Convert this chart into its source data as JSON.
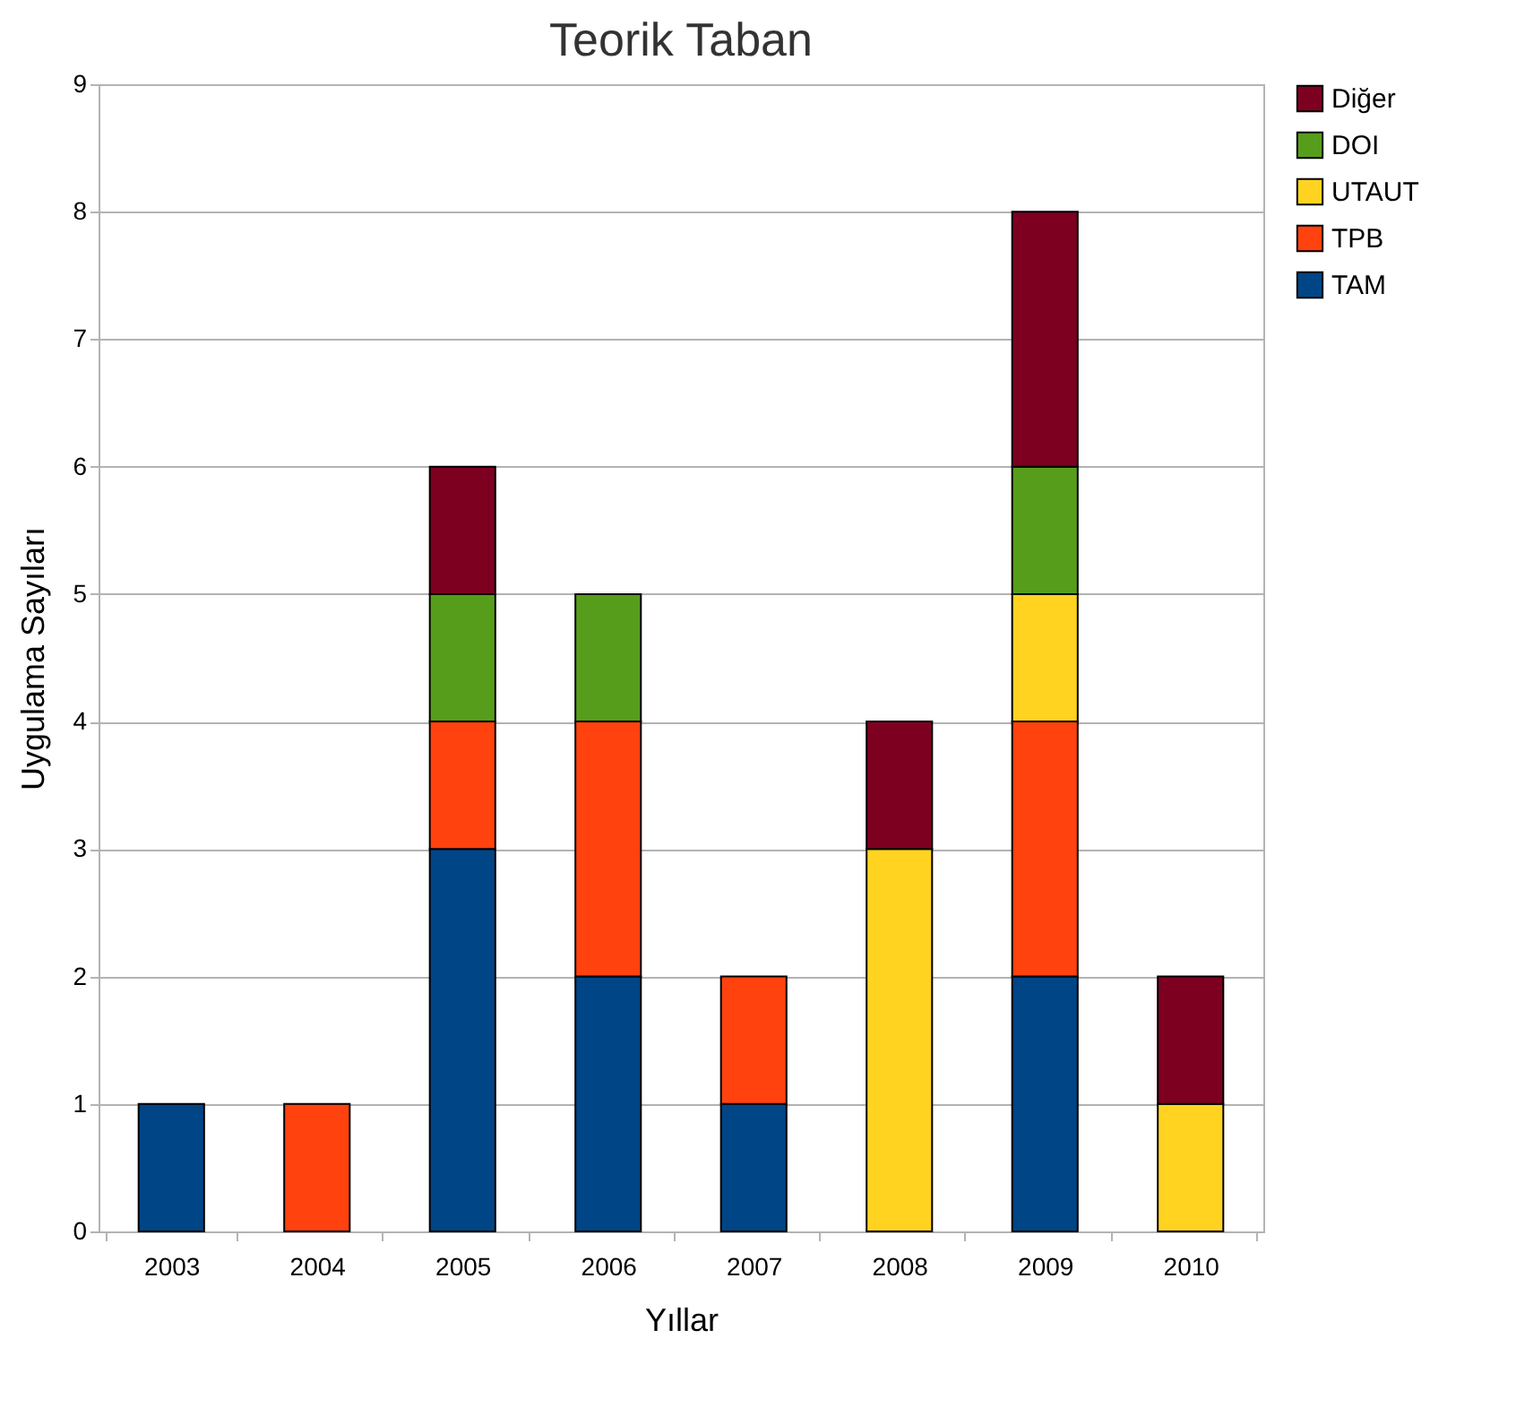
{
  "chart_data": {
    "type": "bar",
    "title": "Teorik Taban",
    "xlabel": "Yıllar",
    "ylabel": "Uygulama Sayıları",
    "categories": [
      "2003",
      "2004",
      "2005",
      "2006",
      "2007",
      "2008",
      "2009",
      "2010"
    ],
    "stacked": true,
    "series": [
      {
        "name": "TAM",
        "color": "#004586",
        "values": [
          1,
          null,
          3,
          2,
          1,
          null,
          2,
          null
        ]
      },
      {
        "name": "TPB",
        "color": "#ff420e",
        "values": [
          null,
          1,
          1,
          2,
          1,
          null,
          2,
          null
        ]
      },
      {
        "name": "UTAUT",
        "color": "#ffd320",
        "values": [
          null,
          null,
          null,
          null,
          null,
          3,
          1,
          1
        ]
      },
      {
        "name": "DOI",
        "color": "#579d1c",
        "values": [
          null,
          null,
          1,
          1,
          null,
          null,
          1,
          null
        ]
      },
      {
        "name": "Diğer",
        "color": "#7e0021",
        "values": [
          null,
          null,
          1,
          null,
          null,
          1,
          2,
          1
        ]
      }
    ],
    "ylim": [
      0,
      9
    ],
    "yticks": [
      0,
      1,
      2,
      3,
      4,
      5,
      6,
      7,
      8,
      9
    ],
    "grid": "y",
    "legend": "right"
  }
}
